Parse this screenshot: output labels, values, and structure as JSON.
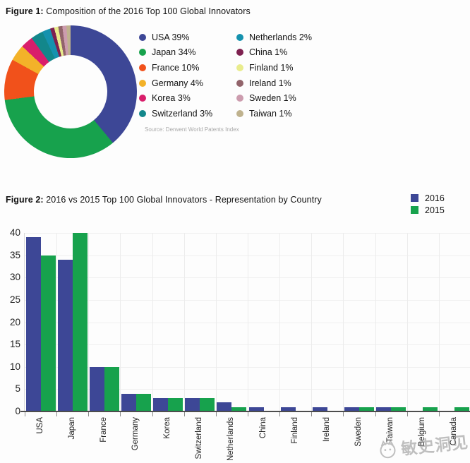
{
  "figure1": {
    "title_bold": "Figure 1:",
    "title_rest": " Composition of the 2016 Top 100 Global Innovators",
    "source": "Source: Derwent World Patents Index"
  },
  "figure2": {
    "title_bold": "Figure 2:",
    "title_rest": " 2016 vs 2015 Top 100 Global Innovators - Representation by Country"
  },
  "watermark": {
    "text": "敏史洞见"
  },
  "chart_data": [
    {
      "type": "pie",
      "donut": true,
      "title": "Figure 1: Composition of the 2016 Top 100 Global Innovators",
      "labels": [
        "USA",
        "Japan",
        "France",
        "Germany",
        "Korea",
        "Switzerland",
        "Netherlands",
        "China",
        "Finland",
        "Ireland",
        "Sweden",
        "Taiwan"
      ],
      "values": [
        39,
        34,
        10,
        4,
        3,
        3,
        2,
        1,
        1,
        1,
        1,
        1
      ],
      "colors": [
        "#3d4796",
        "#17a24d",
        "#f1511b",
        "#f3b229",
        "#d91e6b",
        "#13878b",
        "#1592ae",
        "#7e2150",
        "#e9ec8d",
        "#92646b",
        "#cc9cae",
        "#bfb28e"
      ],
      "legend_entries": [
        "USA 39%",
        "Japan 34%",
        "France 10%",
        "Germany 4%",
        "Korea 3%",
        "Switzerland 3%",
        "Netherlands 2%",
        "China 1%",
        "Finland 1%",
        "Ireland 1%",
        "Sweden 1%",
        "Taiwan 1%"
      ],
      "legend_position": "right",
      "source": "Source: Derwent World Patents Index"
    },
    {
      "type": "bar",
      "title": "Figure 2: 2016 vs 2015 Top 100 Global Innovators - Representation by Country",
      "categories": [
        "USA",
        "Japan",
        "France",
        "Germany",
        "Korea",
        "Switzerland",
        "Netherlands",
        "China",
        "Finland",
        "Ireland",
        "Sweden",
        "Taiwan",
        "Belgium",
        "Canada"
      ],
      "series": [
        {
          "name": "2016",
          "color": "#3d4796",
          "values": [
            39,
            34,
            10,
            4,
            3,
            3,
            2,
            1,
            1,
            1,
            1,
            1,
            0,
            0
          ]
        },
        {
          "name": "2015",
          "color": "#17a24d",
          "values": [
            35,
            40,
            10,
            4,
            3,
            3,
            1,
            0,
            0,
            0,
            1,
            1,
            1,
            1
          ]
        }
      ],
      "xlabel": "",
      "ylabel": "",
      "ylim": [
        0,
        40
      ],
      "yticks": [
        0,
        5,
        10,
        15,
        20,
        25,
        30,
        35,
        40
      ],
      "grid": true,
      "legend_position": "top-right"
    }
  ]
}
